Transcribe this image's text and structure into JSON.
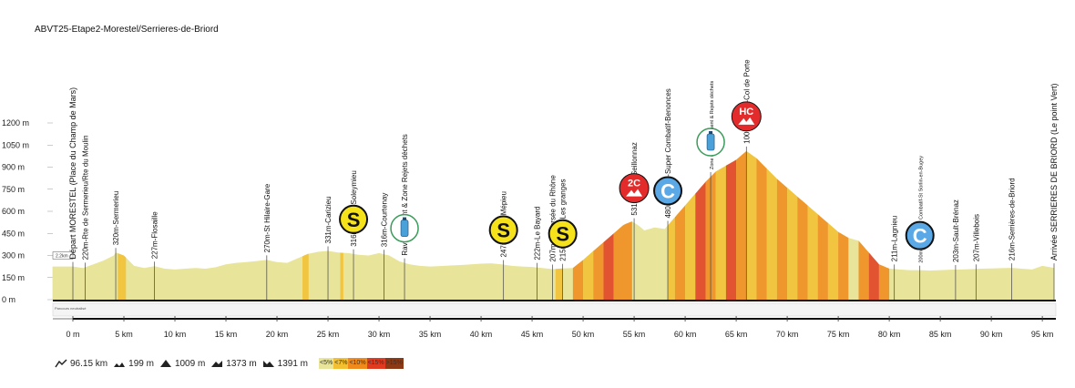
{
  "title": "ABVT25-Etape2-Morestel/Serrieres-de-Briord",
  "chart_data": {
    "type": "area",
    "xlim": [
      0,
      96.15
    ],
    "ylim": [
      0,
      1300
    ],
    "y_ticks": [
      0,
      150,
      300,
      450,
      600,
      750,
      900,
      1050,
      1200
    ],
    "y_tick_labels": [
      "0 m",
      "150 m",
      "300 m",
      "450 m",
      "600 m",
      "750 m",
      "900 m",
      "1050 m",
      "1200 m"
    ],
    "x_ticks": [
      0,
      5,
      10,
      15,
      20,
      25,
      30,
      35,
      40,
      45,
      50,
      55,
      60,
      65,
      70,
      75,
      80,
      85,
      90,
      95
    ],
    "x_tick_labels": [
      "0 m",
      "5 km",
      "10 km",
      "15 km",
      "20 km",
      "25 km",
      "30 km",
      "35 km",
      "40 km",
      "45 km",
      "50 km",
      "55 km",
      "60 km",
      "65 km",
      "70 km",
      "75 km",
      "80 km",
      "85 km",
      "90 km",
      "95 km"
    ],
    "profile": [
      [
        0,
        225
      ],
      [
        1,
        215
      ],
      [
        2,
        240
      ],
      [
        3,
        265
      ],
      [
        4,
        300
      ],
      [
        4.2,
        320
      ],
      [
        5,
        300
      ],
      [
        6,
        230
      ],
      [
        7,
        215
      ],
      [
        8,
        227
      ],
      [
        9,
        210
      ],
      [
        10,
        205
      ],
      [
        11,
        210
      ],
      [
        12,
        215
      ],
      [
        13,
        210
      ],
      [
        14,
        220
      ],
      [
        15,
        240
      ],
      [
        16,
        250
      ],
      [
        17,
        255
      ],
      [
        18,
        262
      ],
      [
        19,
        270
      ],
      [
        20,
        255
      ],
      [
        21,
        250
      ],
      [
        22,
        280
      ],
      [
        23,
        310
      ],
      [
        24,
        325
      ],
      [
        25,
        331
      ],
      [
        26,
        320
      ],
      [
        27,
        316
      ],
      [
        28,
        305
      ],
      [
        29,
        300
      ],
      [
        30,
        316
      ],
      [
        31,
        300
      ],
      [
        32,
        260
      ],
      [
        33,
        240
      ],
      [
        34,
        230
      ],
      [
        35,
        225
      ],
      [
        36,
        228
      ],
      [
        37,
        232
      ],
      [
        38,
        235
      ],
      [
        39,
        240
      ],
      [
        40,
        244
      ],
      [
        41,
        247
      ],
      [
        42,
        240
      ],
      [
        43,
        230
      ],
      [
        44,
        225
      ],
      [
        45,
        222
      ],
      [
        46,
        215
      ],
      [
        47,
        207
      ],
      [
        48,
        212
      ],
      [
        49,
        215
      ],
      [
        50,
        270
      ],
      [
        51,
        330
      ],
      [
        52,
        390
      ],
      [
        53,
        450
      ],
      [
        54,
        510
      ],
      [
        54.8,
        531
      ],
      [
        55.5,
        500
      ],
      [
        56,
        470
      ],
      [
        57,
        490
      ],
      [
        58,
        480
      ],
      [
        59,
        560
      ],
      [
        60,
        640
      ],
      [
        61,
        720
      ],
      [
        62,
        800
      ],
      [
        63,
        870
      ],
      [
        64,
        910
      ],
      [
        65,
        950
      ],
      [
        66,
        1009
      ],
      [
        67,
        960
      ],
      [
        68,
        890
      ],
      [
        69,
        820
      ],
      [
        70,
        760
      ],
      [
        71,
        700
      ],
      [
        72,
        640
      ],
      [
        73,
        580
      ],
      [
        74,
        520
      ],
      [
        75,
        460
      ],
      [
        76,
        420
      ],
      [
        77,
        400
      ],
      [
        78,
        320
      ],
      [
        79,
        240
      ],
      [
        80,
        211
      ],
      [
        81,
        205
      ],
      [
        82,
        200
      ],
      [
        83,
        200
      ],
      [
        84,
        198
      ],
      [
        85,
        200
      ],
      [
        86,
        203
      ],
      [
        87,
        205
      ],
      [
        88,
        207
      ],
      [
        89,
        210
      ],
      [
        90,
        212
      ],
      [
        91,
        214
      ],
      [
        92,
        216
      ],
      [
        93,
        210
      ],
      [
        94,
        205
      ],
      [
        95,
        230
      ],
      [
        96.15,
        216
      ]
    ],
    "gradient_legend": [
      {
        "label": "<5%",
        "color": "#e8e49a"
      },
      {
        "label": "<7%",
        "color": "#f2c030"
      },
      {
        "label": "<10%",
        "color": "#f08a1a"
      },
      {
        "label": "<15%",
        "color": "#e03a20"
      },
      {
        "label": ">15%",
        "color": "#8c3a16"
      }
    ],
    "steep_segments": [
      [
        4.4,
        5.2,
        "#f2c030"
      ],
      [
        22.5,
        23.1,
        "#f2c030"
      ],
      [
        26.2,
        26.5,
        "#f2c030"
      ],
      [
        47.3,
        48,
        "#f2c030"
      ],
      [
        49,
        50,
        "#f08a1a"
      ],
      [
        50,
        51,
        "#f2c030"
      ],
      [
        51,
        52,
        "#f08a1a"
      ],
      [
        52,
        53,
        "#e03a20"
      ],
      [
        53,
        54.8,
        "#f08a1a"
      ],
      [
        58.3,
        59,
        "#f2c030"
      ],
      [
        59,
        60,
        "#f08a1a"
      ],
      [
        60,
        61,
        "#f2c030"
      ],
      [
        61,
        62,
        "#e03a20"
      ],
      [
        62,
        63,
        "#f08a1a"
      ],
      [
        63,
        64,
        "#f2c030"
      ],
      [
        64,
        65,
        "#e03a20"
      ],
      [
        65,
        66,
        "#f08a1a"
      ],
      [
        66,
        67,
        "#f2c030"
      ],
      [
        67,
        68,
        "#f08a1a"
      ],
      [
        68,
        69,
        "#f2c030"
      ],
      [
        69,
        70,
        "#f08a1a"
      ],
      [
        70,
        71,
        "#f2c030"
      ],
      [
        71,
        72,
        "#f08a1a"
      ],
      [
        72,
        73,
        "#f2c030"
      ],
      [
        73,
        74,
        "#f08a1a"
      ],
      [
        74,
        75,
        "#f2c030"
      ],
      [
        75,
        76,
        "#f08a1a"
      ],
      [
        77,
        78,
        "#f08a1a"
      ],
      [
        78,
        79,
        "#e03a20"
      ],
      [
        79,
        80,
        "#f08a1a"
      ]
    ],
    "markers": [
      {
        "km": 0,
        "label": "Départ MORESTEL (Place du Champ de Mars)"
      },
      {
        "km": 1.2,
        "label": "220m-Rte de Sermerieu/Rte du Moulin"
      },
      {
        "km": 4.2,
        "label": "320m-Sermerieu"
      },
      {
        "km": 8,
        "label": "227m-Flosaille"
      },
      {
        "km": 19,
        "label": "270m-St Hilaire-Gare"
      },
      {
        "km": 25,
        "label": "331m-Carizieu"
      },
      {
        "km": 27.5,
        "label": "316m-Sprint-Soleymieu"
      },
      {
        "km": 30.5,
        "label": "316m-Courtenay"
      },
      {
        "km": 32.5,
        "label": "Ravitaillement & Zone Rejets déchets"
      },
      {
        "km": 42.2,
        "label": "247m-Sprint-Mépieu"
      },
      {
        "km": 45.5,
        "label": "222m-Le Bayard"
      },
      {
        "km": 47,
        "label": "207m-Traversée du Rhône"
      },
      {
        "km": 48,
        "label": "215m-Sprint-Les granges"
      },
      {
        "km": 55,
        "label": "531m-GPM-Seillonnaz"
      },
      {
        "km": 58.3,
        "label": "480m- Sprint-Super Combatif-Benonces"
      },
      {
        "km": 62.5,
        "label": "Zone de ravitaillement & Rejets déchets"
      },
      {
        "km": 66,
        "label": "1009m-GPM-Col de Porte"
      },
      {
        "km": 80.5,
        "label": "211m-Lagnieu"
      },
      {
        "km": 83,
        "label": "200m-Sprint Super Combatif-St Sorlin-en-Bugey"
      },
      {
        "km": 86.5,
        "label": "203m-Sault-Brénaz"
      },
      {
        "km": 88.5,
        "label": "207m-Villebois"
      },
      {
        "km": 92,
        "label": "216m-Serrières-de-Briord"
      },
      {
        "km": 96.15,
        "label": "Arrivée SERRIERES DE BRIORD (Le point Vert)"
      }
    ],
    "badges": [
      {
        "km": 27.5,
        "type": "sprint",
        "text": "S"
      },
      {
        "km": 32.5,
        "type": "feed",
        "text": ""
      },
      {
        "km": 42.2,
        "type": "sprint",
        "text": "S"
      },
      {
        "km": 48,
        "type": "sprint",
        "text": "S"
      },
      {
        "km": 55,
        "type": "gpm",
        "text": "2C"
      },
      {
        "km": 58.3,
        "type": "combatif",
        "text": "C"
      },
      {
        "km": 62.5,
        "type": "feed",
        "text": ""
      },
      {
        "km": 66,
        "type": "gpm",
        "text": "HC"
      },
      {
        "km": 83,
        "type": "combatif",
        "text": "C"
      }
    ],
    "neutral_label": "Parcours neutralisé",
    "start_label": "2.2km"
  },
  "stats": {
    "distance": "96.15 km",
    "min_alt": "199 m",
    "max_alt": "1009 m",
    "climb": "1373 m",
    "descent": "1391 m"
  }
}
